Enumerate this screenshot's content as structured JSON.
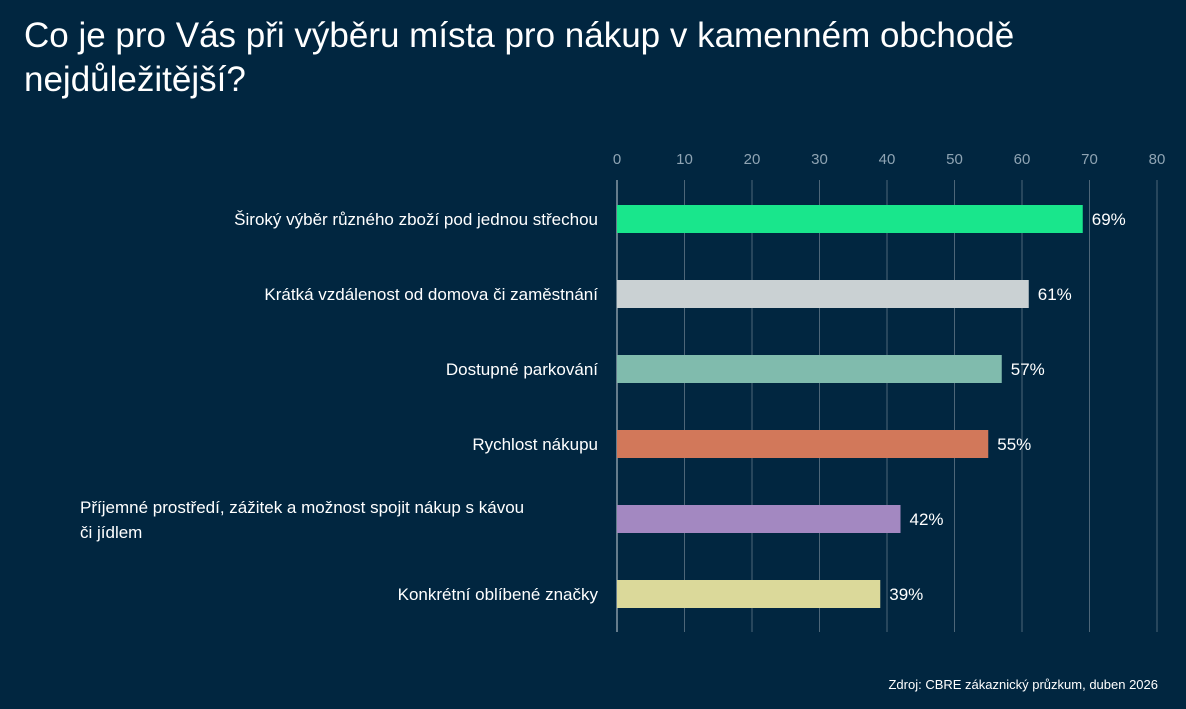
{
  "title": "Co je pro Vás při výběru místa pro nákup v kamenném obchodě nejdůležitější?",
  "source": "Zdroj: CBRE zákaznický průzkum, duben 2026",
  "chart_data": {
    "type": "bar",
    "orientation": "horizontal",
    "title": "Co je pro Vás při výběru místa pro nákup v kamenném obchodě nejdůležitější?",
    "xlabel": "",
    "ylabel": "",
    "xlim": [
      0,
      80
    ],
    "ticks": [
      0,
      10,
      20,
      30,
      40,
      50,
      60,
      70,
      80
    ],
    "tick_position": "top",
    "grid": true,
    "legend": "none",
    "categories": [
      "Široký výběr různého zboží pod jednou střechou",
      "Krátká vzdálenost od domova či zaměstnání",
      "Dostupné parkování",
      "Rychlost nákupu",
      "Příjemné prostředí, zážitek a možnost spojit nákup s kávou či jídlem",
      "Konkrétní oblíbené značky"
    ],
    "values": [
      69,
      61,
      57,
      55,
      42,
      39
    ],
    "labels": [
      "69%",
      "61%",
      "57%",
      "55%",
      "42%",
      "39%"
    ],
    "colors": [
      "#19E68C",
      "#CAD1D3",
      "#80BBAD",
      "#D2785A",
      "#A388C1",
      "#DBD99A"
    ]
  }
}
